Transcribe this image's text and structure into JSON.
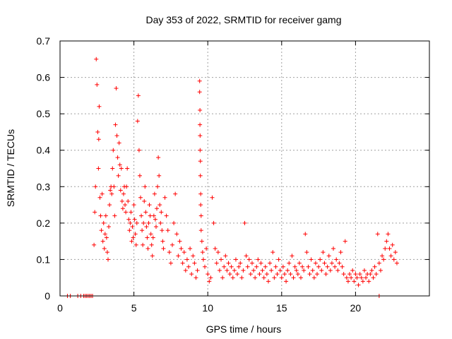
{
  "chart_data": {
    "type": "scatter",
    "title": "Day 353 of 2022, SRMTID for receiver gamg",
    "xlabel": "GPS time / hours",
    "ylabel": "SRMTID / TECUs",
    "xlim": [
      0,
      25
    ],
    "ylim": [
      0,
      0.7
    ],
    "xticks": [
      0,
      5,
      10,
      15,
      20
    ],
    "yticks": [
      0,
      0.1,
      0.2,
      0.3,
      0.4,
      0.5,
      0.6,
      0.7
    ],
    "xtick_labels": [
      "0",
      "5",
      "10",
      "15",
      "20"
    ],
    "ytick_labels": [
      "0",
      "0.1",
      "0.2",
      "0.3",
      "0.4",
      "0.5",
      "0.6",
      "0.7"
    ],
    "grid": true,
    "marker": "+",
    "color": "#ff0000",
    "series": [
      {
        "name": "SRMTID",
        "x": [
          0.5,
          0.7,
          1.2,
          1.4,
          1.6,
          1.7,
          1.8,
          1.9,
          2.0,
          2.1,
          2.2,
          2.3,
          2.35,
          2.4,
          2.45,
          2.5,
          2.55,
          2.6,
          2.62,
          2.65,
          2.7,
          2.75,
          2.8,
          2.85,
          2.9,
          2.95,
          3.0,
          3.05,
          3.1,
          3.15,
          3.2,
          3.25,
          3.3,
          3.35,
          3.4,
          3.45,
          3.5,
          3.55,
          3.6,
          3.65,
          3.7,
          3.75,
          3.8,
          3.85,
          3.9,
          3.95,
          4.0,
          4.05,
          4.1,
          4.15,
          4.2,
          4.25,
          4.3,
          4.35,
          4.4,
          4.45,
          4.5,
          4.55,
          4.6,
          4.65,
          4.7,
          4.75,
          4.8,
          4.85,
          4.9,
          4.95,
          5.0,
          5.05,
          5.1,
          5.15,
          5.2,
          5.25,
          5.3,
          5.35,
          5.4,
          5.45,
          5.5,
          5.55,
          5.6,
          5.65,
          5.7,
          5.75,
          5.8,
          5.85,
          5.9,
          5.95,
          6.0,
          6.05,
          6.1,
          6.15,
          6.2,
          6.25,
          6.3,
          6.35,
          6.4,
          6.45,
          6.5,
          6.55,
          6.6,
          6.65,
          6.7,
          6.75,
          6.8,
          6.85,
          6.9,
          6.95,
          7.0,
          7.1,
          7.2,
          7.3,
          7.4,
          7.5,
          7.6,
          7.7,
          7.8,
          7.9,
          8.0,
          8.1,
          8.2,
          8.3,
          8.4,
          8.5,
          8.6,
          8.7,
          8.8,
          8.9,
          9.0,
          9.1,
          9.2,
          9.3,
          9.45,
          9.45,
          9.47,
          9.47,
          9.48,
          9.48,
          9.5,
          9.5,
          9.52,
          9.52,
          9.55,
          9.55,
          9.6,
          9.65,
          9.7,
          9.8,
          9.9,
          10.0,
          10.1,
          10.2,
          10.3,
          10.4,
          10.5,
          10.6,
          10.7,
          10.8,
          10.9,
          11.0,
          11.1,
          11.2,
          11.3,
          11.4,
          11.5,
          11.6,
          11.7,
          11.8,
          11.9,
          12.0,
          12.1,
          12.2,
          12.3,
          12.4,
          12.5,
          12.6,
          12.7,
          12.8,
          12.9,
          13.0,
          13.1,
          13.2,
          13.3,
          13.4,
          13.5,
          13.6,
          13.7,
          13.8,
          13.9,
          14.0,
          14.1,
          14.2,
          14.3,
          14.4,
          14.5,
          14.6,
          14.7,
          14.8,
          14.9,
          15.0,
          15.1,
          15.2,
          15.3,
          15.4,
          15.5,
          15.6,
          15.7,
          15.8,
          15.9,
          16.0,
          16.1,
          16.2,
          16.3,
          16.4,
          16.5,
          16.6,
          16.7,
          16.8,
          16.9,
          17.0,
          17.1,
          17.2,
          17.3,
          17.4,
          17.5,
          17.6,
          17.7,
          17.8,
          17.9,
          18.0,
          18.1,
          18.2,
          18.3,
          18.4,
          18.5,
          18.6,
          18.7,
          18.8,
          18.9,
          19.0,
          19.1,
          19.2,
          19.3,
          19.4,
          19.5,
          19.6,
          19.7,
          19.8,
          19.9,
          20.0,
          20.1,
          20.2,
          20.3,
          20.4,
          20.5,
          20.6,
          20.7,
          20.8,
          20.9,
          21.0,
          21.1,
          21.2,
          21.3,
          21.4,
          21.5,
          21.6,
          21.7,
          21.8,
          21.9,
          22.0,
          22.1,
          22.2,
          22.3,
          22.4,
          22.5,
          22.6,
          22.7,
          22.8,
          21.6
        ],
        "y": [
          0,
          0,
          0,
          0,
          0,
          0,
          0,
          0,
          0,
          0,
          0,
          0.14,
          0.23,
          0.3,
          0.65,
          0.58,
          0.45,
          0.35,
          0.43,
          0.52,
          0.27,
          0.22,
          0.18,
          0.28,
          0.15,
          0.2,
          0.13,
          0.17,
          0.22,
          0.16,
          0.12,
          0.1,
          0.19,
          0.25,
          0.29,
          0.3,
          0.28,
          0.35,
          0.4,
          0.3,
          0.22,
          0.47,
          0.57,
          0.44,
          0.38,
          0.33,
          0.42,
          0.36,
          0.29,
          0.35,
          0.26,
          0.24,
          0.28,
          0.3,
          0.25,
          0.23,
          0.3,
          0.35,
          0.26,
          0.21,
          0.18,
          0.2,
          0.23,
          0.15,
          0.19,
          0.16,
          0.25,
          0.21,
          0.17,
          0.14,
          0.2,
          0.48,
          0.55,
          0.4,
          0.33,
          0.27,
          0.22,
          0.18,
          0.14,
          0.2,
          0.26,
          0.3,
          0.23,
          0.19,
          0.16,
          0.13,
          0.2,
          0.25,
          0.22,
          0.17,
          0.14,
          0.11,
          0.16,
          0.22,
          0.28,
          0.21,
          0.19,
          0.24,
          0.3,
          0.38,
          0.33,
          0.25,
          0.2,
          0.23,
          0.18,
          0.15,
          0.13,
          0.27,
          0.22,
          0.18,
          0.12,
          0.09,
          0.14,
          0.2,
          0.28,
          0.17,
          0.11,
          0.15,
          0.13,
          0.09,
          0.12,
          0.07,
          0.1,
          0.08,
          0.13,
          0.06,
          0.11,
          0.09,
          0.05,
          0.07,
          0.59,
          0.56,
          0.51,
          0.47,
          0.44,
          0.4,
          0.37,
          0.33,
          0.28,
          0.25,
          0.22,
          0.18,
          0.15,
          0.12,
          0.1,
          0.08,
          0.13,
          0.06,
          0.04,
          0.05,
          0.27,
          0.2,
          0.13,
          0.09,
          0.12,
          0.07,
          0.1,
          0.05,
          0.08,
          0.11,
          0.07,
          0.09,
          0.06,
          0.08,
          0.05,
          0.07,
          0.1,
          0.06,
          0.08,
          0.09,
          0.05,
          0.07,
          0.2,
          0.11,
          0.08,
          0.1,
          0.06,
          0.09,
          0.07,
          0.05,
          0.08,
          0.1,
          0.06,
          0.09,
          0.07,
          0.05,
          0.08,
          0.06,
          0.04,
          0.09,
          0.07,
          0.12,
          0.05,
          0.08,
          0.06,
          0.1,
          0.07,
          0.05,
          0.08,
          0.06,
          0.04,
          0.07,
          0.09,
          0.06,
          0.11,
          0.05,
          0.08,
          0.07,
          0.06,
          0.09,
          0.05,
          0.08,
          0.07,
          0.17,
          0.12,
          0.08,
          0.06,
          0.1,
          0.07,
          0.05,
          0.09,
          0.06,
          0.08,
          0.1,
          0.07,
          0.12,
          0.09,
          0.06,
          0.08,
          0.11,
          0.07,
          0.09,
          0.13,
          0.08,
          0.1,
          0.07,
          0.09,
          0.12,
          0.08,
          0.06,
          0.15,
          0.05,
          0.04,
          0.06,
          0.05,
          0.07,
          0.04,
          0.06,
          0.05,
          0.03,
          0.06,
          0.05,
          0.04,
          0.07,
          0.05,
          0.06,
          0.04,
          0.06,
          0.07,
          0.05,
          0.08,
          0.06,
          0.17,
          0.09,
          0.07,
          0.11,
          0.1,
          0.13,
          0.15,
          0.17,
          0.13,
          0.11,
          0.14,
          0.1,
          0.12,
          0.09,
          0
        ]
      }
    ]
  }
}
